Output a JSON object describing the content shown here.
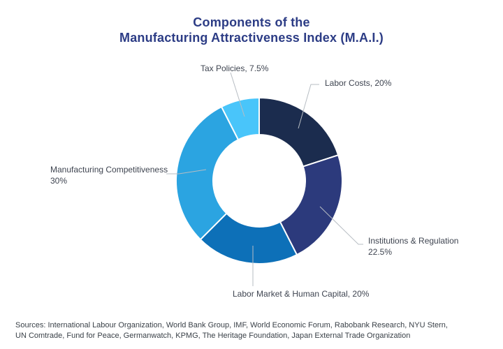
{
  "chart_data": {
    "type": "pie",
    "subtype": "donut",
    "title_line1": "Components of the",
    "title_line2": "Manufacturing Attractiveness Index (M.A.I.)",
    "units": "%",
    "legend_position": "none",
    "label_style": "outside-callouts",
    "start_angle_deg_from_top": 0,
    "direction": "clockwise",
    "donut_hole_ratio": 0.55,
    "segments": [
      {
        "name": "Labor Costs",
        "value_pct": 20,
        "color": "#1b2c4e"
      },
      {
        "name": "Institutions & Regulation",
        "value_pct": 22.5,
        "color": "#2c3a7c"
      },
      {
        "name": "Labor Market & Human Capital",
        "value_pct": 20,
        "color": "#0d70b8"
      },
      {
        "name": "Manufacturing Competitiveness",
        "value_pct": 30,
        "color": "#2ba4e1"
      },
      {
        "name": "Tax Policies",
        "value_pct": 7.5,
        "color": "#49c5fa"
      }
    ]
  },
  "labels": {
    "tax": "Tax Policies, 7.5%",
    "labor_costs": "Labor Costs, 20%",
    "institutions_line1": "Institutions & Regulation",
    "institutions_line2": "22.5%",
    "labor_market": "Labor Market & Human Capital, 20%",
    "manufacturing_line1": "Manufacturing Competitiveness",
    "manufacturing_line2": "30%"
  },
  "sources": {
    "line1": "Sources: International Labour Organization, World Bank Group, IMF, World Economic Forum, Rabobank Research, NYU Stern,",
    "line2": "UN Comtrade, Fund for Peace, Germanwatch, KPMG, The Heritage Foundation, Japan External Trade Organization"
  },
  "colors": {
    "title": "#2c3c85",
    "label_text": "#3e4450",
    "leader_line": "#b7bdc3",
    "sources_text": "#3a4148",
    "background": "#ffffff"
  }
}
